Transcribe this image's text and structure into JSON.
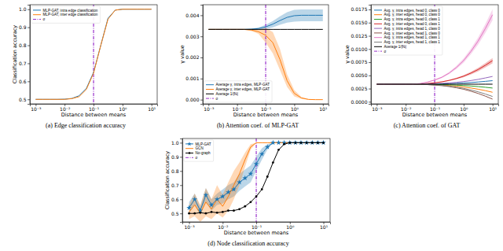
{
  "chart_data": [
    {
      "type": "line",
      "title": "(a) Edge classification accuracy",
      "x_label": "Distance between means",
      "y_label": "Classification accuracy",
      "log": "x",
      "grid": false,
      "legend": "upper left",
      "x": [
        0.001,
        0.00178,
        0.00316,
        0.00562,
        0.01,
        0.0178,
        0.0316,
        0.0562,
        0.1,
        0.178,
        0.316,
        0.562,
        1,
        1.78,
        3.16,
        5.62,
        10
      ],
      "xlim": [
        0.00063,
        15.8
      ],
      "xticks": [
        {
          "value": 0.001,
          "label": "10⁻³"
        },
        {
          "value": 0.01,
          "label": "10⁻²"
        },
        {
          "value": 0.1,
          "label": "10⁻¹"
        },
        {
          "value": 1,
          "label": "10⁰"
        },
        {
          "value": 10,
          "label": "10¹"
        }
      ],
      "ylim": [
        0.475,
        1.025
      ],
      "yticks": [
        0.5,
        0.6,
        0.7,
        0.8,
        0.9,
        {
          "value": 1,
          "label": "1.0"
        }
      ],
      "series": [
        {
          "name": "MLP-GAT, intra edge classification",
          "color": "#1f77b4",
          "values": [
            0.5,
            0.5,
            0.5,
            0.5,
            0.501,
            0.505,
            0.52,
            0.56,
            0.65,
            0.8,
            0.95,
            0.995,
            1,
            1,
            1,
            1,
            1
          ]
        },
        {
          "name": "MLP-GAT, inter edge classification",
          "color": "#ff7f0e",
          "values": [
            0.5,
            0.5,
            0.5,
            0.5,
            0.5,
            0.504,
            0.515,
            0.555,
            0.645,
            0.8,
            0.945,
            0.995,
            1,
            1,
            1,
            1,
            1
          ]
        }
      ],
      "vline": {
        "name": "σ",
        "value": 0.1,
        "color": "#9932cc",
        "line_style": "dashdot"
      }
    },
    {
      "type": "line",
      "title": "(b) Attention coef. of MLP-GAT",
      "x_label": "Distance between means",
      "y_label": "γ value",
      "log": "x",
      "grid": false,
      "legend": "lower left",
      "x": [
        0.001,
        0.00178,
        0.00316,
        0.00562,
        0.01,
        0.0178,
        0.0316,
        0.0562,
        0.1,
        0.178,
        0.316,
        0.562,
        1,
        1.78,
        3.16,
        5.62,
        10
      ],
      "xlim": [
        0.00063,
        15.8
      ],
      "xticks": [
        {
          "value": 0.001,
          "label": "10⁻³"
        },
        {
          "value": 0.01,
          "label": "10⁻²"
        },
        {
          "value": 0.1,
          "label": "10⁻¹"
        },
        {
          "value": 1,
          "label": "10⁰"
        },
        {
          "value": 10,
          "label": "10¹"
        }
      ],
      "ylim": [
        -0.0002,
        0.0045
      ],
      "yticks": [
        {
          "value": 0,
          "label": "0.000"
        },
        {
          "value": 0.001,
          "label": "0.001"
        },
        {
          "value": 0.002,
          "label": "0.002"
        },
        {
          "value": 0.003,
          "label": "0.003"
        },
        {
          "value": 0.004,
          "label": "0.004"
        }
      ],
      "series": [
        {
          "name": "Average γ, intra edges, MLP-GAT",
          "color": "#1f77b4",
          "values": [
            0.00333,
            0.00333,
            0.00333,
            0.00333,
            0.00333,
            0.00333,
            0.00334,
            0.00337,
            0.00345,
            0.00358,
            0.00375,
            0.0039,
            0.00398,
            0.004,
            0.004,
            0.004,
            0.004
          ],
          "error": [
            2e-05,
            2e-05,
            2e-05,
            2e-05,
            2e-05,
            2e-05,
            3e-05,
            5e-05,
            0.0001,
            0.00015,
            0.0002,
            0.00025,
            0.00028,
            0.00028,
            0.00028,
            0.00028,
            0.00028
          ]
        },
        {
          "name": "Average γ, inter edges, MLP-GAT",
          "color": "#ff7f0e",
          "values": [
            0.00333,
            0.00333,
            0.00333,
            0.00333,
            0.00333,
            0.00333,
            0.0033,
            0.00322,
            0.00305,
            0.0027,
            0.0019,
            0.0009,
            0.0003,
            8e-05,
            1e-05,
            0,
            0
          ],
          "error": [
            2e-05,
            2e-05,
            2e-05,
            2e-05,
            2e-05,
            2e-05,
            5e-05,
            0.0001,
            0.00035,
            0.0005,
            0.0005,
            0.0003,
            0.00015,
            5e-05,
            1e-05,
            0,
            0
          ]
        },
        {
          "name": "Average 1/|Nᵢ|",
          "color": "#000000",
          "values": [
            0.00333,
            0.00333,
            0.00333,
            0.00333,
            0.00333,
            0.00333,
            0.00333,
            0.00333,
            0.00333,
            0.00333,
            0.00333,
            0.00333,
            0.00333,
            0.00333,
            0.00333,
            0.00333,
            0.00333
          ]
        }
      ],
      "vline": {
        "name": "σ",
        "value": 0.1,
        "color": "#9932cc",
        "line_style": "dashdot"
      }
    },
    {
      "type": "line",
      "title": "(c) Attention coef. of GAT",
      "x_label": "Distance between means",
      "y_label": "γ value",
      "log": "x",
      "grid": false,
      "legend": "upper left",
      "x": [
        0.001,
        0.00178,
        0.00316,
        0.00562,
        0.01,
        0.0178,
        0.0316,
        0.0562,
        0.1,
        0.178,
        0.316,
        0.562,
        1,
        1.78,
        3.16,
        5.62,
        10
      ],
      "xlim": [
        0.00063,
        15.8
      ],
      "xticks": [
        {
          "value": 0.001,
          "label": "10⁻³"
        },
        {
          "value": 0.01,
          "label": "10⁻²"
        },
        {
          "value": 0.1,
          "label": "10⁻¹"
        },
        {
          "value": 1,
          "label": "10⁰"
        },
        {
          "value": 10,
          "label": "10¹"
        }
      ],
      "ylim": [
        -0.0004,
        0.0184
      ],
      "yticks": [
        {
          "value": 0,
          "label": "0.0000"
        },
        {
          "value": 0.0025,
          "label": "0.0025"
        },
        {
          "value": 0.005,
          "label": "0.0050"
        },
        {
          "value": 0.0075,
          "label": "0.0075"
        },
        {
          "value": 0.01,
          "label": "0.0100"
        },
        {
          "value": 0.0125,
          "label": "0.0125"
        },
        {
          "value": 0.015,
          "label": "0.0150"
        },
        {
          "value": 0.0175,
          "label": "0.0175"
        }
      ],
      "series": [
        {
          "name": "Avg. γ, intra edges, head 0, class 0",
          "color": "#1f77b4",
          "values": [
            0.00333,
            0.00333,
            0.00333,
            0.00333,
            0.00333,
            0.00333,
            0.00334,
            0.00335,
            0.00337,
            0.0034,
            0.00344,
            0.00349,
            0.00356,
            0.00364,
            0.00375,
            0.00387,
            0.004
          ]
        },
        {
          "name": "Avg. γ, inter edges, head 0, class 0",
          "color": "#ff7f0e",
          "values": [
            0.00333,
            0.00333,
            0.00333,
            0.00333,
            0.00333,
            0.00333,
            0.00331,
            0.00328,
            0.00324,
            0.00318,
            0.00309,
            0.00296,
            0.00281,
            0.00261,
            0.00238,
            0.00211,
            0.0018
          ]
        },
        {
          "name": "Avg. γ, intra edges, head 0, class 1",
          "color": "#2ca02c",
          "values": [
            0.00333,
            0.00333,
            0.00333,
            0.00333,
            0.00333,
            0.00333,
            0.00332,
            0.00331,
            0.00329,
            0.00326,
            0.00321,
            0.00315,
            0.00308,
            0.00299,
            0.00288,
            0.00275,
            0.0026
          ]
        },
        {
          "name": "Avg. γ, inter edges, head 0, class 1",
          "color": "#d62728",
          "values": [
            0.00333,
            0.00333,
            0.00333,
            0.00333,
            0.00333,
            0.00333,
            0.00337,
            0.00346,
            0.0036,
            0.00378,
            0.00405,
            0.0044,
            0.00485,
            0.00543,
            0.0061,
            0.00691,
            0.0078
          ],
          "error": [
            1e-05,
            1e-05,
            1e-05,
            1e-05,
            1e-05,
            1e-05,
            2e-05,
            3e-05,
            5e-05,
            8e-05,
            0.00011,
            0.00015,
            0.0002,
            0.00026,
            0.00033,
            0.0004,
            0.0005
          ]
        },
        {
          "name": "Avg. γ, intra edges, head 1, class 0",
          "color": "#9467bd",
          "values": [
            0.00333,
            0.00333,
            0.00333,
            0.00333,
            0.00333,
            0.00333,
            0.00334,
            0.00337,
            0.00342,
            0.00348,
            0.00357,
            0.00368,
            0.00383,
            0.00402,
            0.00424,
            0.00451,
            0.0048
          ]
        },
        {
          "name": "Avg. γ, inter edges, head 1, class 0",
          "color": "#8c564b",
          "values": [
            0.00333,
            0.00333,
            0.00333,
            0.00333,
            0.00333,
            0.00333,
            0.0033,
            0.00325,
            0.00316,
            0.00305,
            0.00288,
            0.00265,
            0.00237,
            0.002,
            0.00158,
            0.00107,
            0.0005
          ]
        },
        {
          "name": "Avg. γ, intra edges, head 1, class 1",
          "color": "#e377c2",
          "values": [
            0.00333,
            0.00333,
            0.00333,
            0.00333,
            0.00333,
            0.00333,
            0.00346,
            0.00373,
            0.00412,
            0.00465,
            0.00544,
            0.00649,
            0.00781,
            0.00952,
            0.0115,
            0.01387,
            0.0165
          ],
          "error": [
            2e-05,
            2e-05,
            2e-05,
            2e-05,
            2e-05,
            2e-05,
            3e-05,
            6e-05,
            0.0001,
            0.00015,
            0.00022,
            0.0003,
            0.0004,
            0.00052,
            0.00067,
            0.00085,
            0.00105
          ]
        },
        {
          "name": "Avg. γ, inter edges, head 1, class 1",
          "color": "#7f7f7f",
          "values": [
            0.00333,
            0.00333,
            0.00333,
            0.00333,
            0.00333,
            0.00333,
            0.00331,
            0.00326,
            0.00319,
            0.0031,
            0.00296,
            0.00277,
            0.00254,
            0.00223,
            0.00189,
            0.00147,
            0.001
          ]
        },
        {
          "name": "Average 1/|Nᵢ|",
          "color": "#000000",
          "values": [
            0.00333,
            0.00333,
            0.00333,
            0.00333,
            0.00333,
            0.00333,
            0.00333,
            0.00333,
            0.00333,
            0.00333,
            0.00333,
            0.00333,
            0.00333,
            0.00333,
            0.00333,
            0.00333,
            0.00333
          ]
        }
      ],
      "vline": {
        "name": "σ",
        "value": 0.1,
        "color": "#9932cc",
        "line_style": "dashdot"
      }
    },
    {
      "type": "line",
      "title": "(d) Node classification accuracy",
      "x_label": "Distance between means",
      "y_label": "Classification accuracy",
      "log": "x",
      "grid": false,
      "legend": "upper left",
      "x": [
        0.001,
        0.00147,
        0.00215,
        0.00316,
        0.00464,
        0.00681,
        0.01,
        0.0147,
        0.0215,
        0.0316,
        0.0464,
        0.0681,
        0.1,
        0.147,
        0.215,
        0.316,
        0.464,
        0.681,
        1,
        1.47,
        2.15,
        3.16,
        4.64,
        6.81,
        10
      ],
      "xlim": [
        0.00063,
        15.8
      ],
      "xticks": [
        {
          "value": 0.001,
          "label": "10⁻³"
        },
        {
          "value": 0.01,
          "label": "10⁻²"
        },
        {
          "value": 0.1,
          "label": "10⁻¹"
        },
        {
          "value": 1,
          "label": "10⁰"
        },
        {
          "value": 10,
          "label": "10¹"
        }
      ],
      "ylim": [
        0.44,
        1.03
      ],
      "yticks": [
        0.5,
        0.6,
        0.7,
        0.8,
        0.9,
        {
          "value": 1,
          "label": "1.0"
        }
      ],
      "series": [
        {
          "name": "MLP-GAT",
          "color": "#1f77b4",
          "marker": "star",
          "values": [
            0.54,
            0.6,
            0.52,
            0.63,
            0.56,
            0.6,
            0.62,
            0.65,
            0.67,
            0.72,
            0.75,
            0.78,
            0.85,
            0.92,
            0.97,
            1,
            1,
            1,
            1,
            1,
            1,
            1,
            1,
            1,
            1
          ],
          "error": [
            0.04,
            0.04,
            0.03,
            0.05,
            0.04,
            0.04,
            0.05,
            0.05,
            0.05,
            0.06,
            0.06,
            0.06,
            0.05,
            0.04,
            0.02,
            0,
            0,
            0,
            0,
            0,
            0,
            0,
            0,
            0,
            0
          ]
        },
        {
          "name": "GCN",
          "color": "#ff7f0e",
          "values": [
            0.51,
            0.56,
            0.5,
            0.58,
            0.53,
            0.6,
            0.55,
            0.62,
            0.7,
            0.78,
            0.88,
            0.97,
            1,
            1,
            1,
            1,
            1,
            1,
            1,
            1,
            1,
            1,
            1,
            1,
            1
          ],
          "error": [
            0.05,
            0.08,
            0.06,
            0.1,
            0.07,
            0.1,
            0.08,
            0.1,
            0.1,
            0.08,
            0.05,
            0.02,
            0,
            0,
            0,
            0,
            0,
            0,
            0,
            0,
            0,
            0,
            0,
            0,
            0
          ]
        },
        {
          "name": "No-graph",
          "color": "#000000",
          "marker": "circle",
          "values": [
            0.5,
            0.5,
            0.505,
            0.5,
            0.51,
            0.505,
            0.51,
            0.52,
            0.52,
            0.53,
            0.55,
            0.58,
            0.62,
            0.67,
            0.76,
            0.86,
            0.95,
            0.99,
            1,
            1,
            1,
            1,
            1,
            1,
            1
          ]
        }
      ],
      "vline": {
        "name": "σ",
        "value": 0.1,
        "color": "#9932cc",
        "line_style": "dashdot"
      }
    }
  ]
}
